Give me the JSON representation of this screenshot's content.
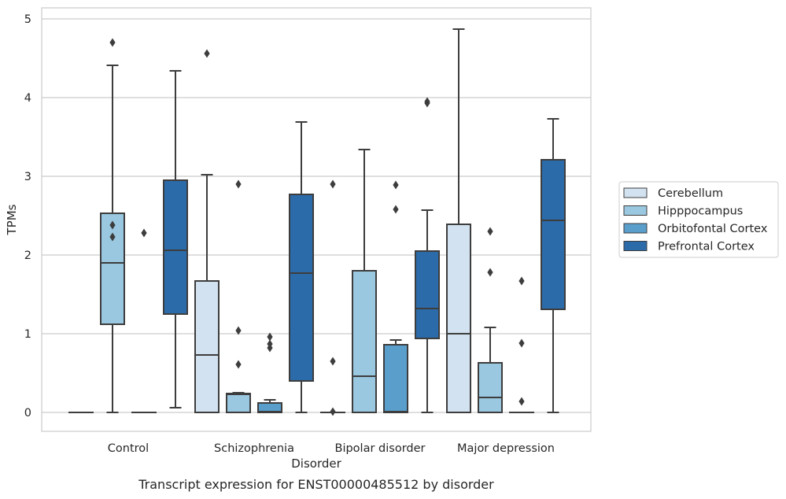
{
  "chart_data": {
    "type": "box",
    "title": "Transcript expression for ENST00000485512 by disorder",
    "xlabel": "Disorder",
    "ylabel": "TPMs",
    "ylim": [
      -0.24,
      5.14
    ],
    "yticks": [
      "0",
      "1",
      "2",
      "3",
      "4",
      "5"
    ],
    "ytick_values": [
      0,
      1,
      2,
      3,
      4,
      5
    ],
    "grid": true,
    "legend_position": "right",
    "categories": [
      "Control",
      "Schizophrenia",
      "Bipolar disorder",
      "Major depression"
    ],
    "series": [
      {
        "name": "Cerebellum",
        "color": "#d2e2f1",
        "boxes": [
          {
            "q1": 0,
            "median": 0,
            "q3": 0,
            "whislo": 0,
            "whishi": 0,
            "fliers": []
          },
          {
            "q1": 0,
            "median": 0.73,
            "q3": 1.67,
            "whislo": 0,
            "whishi": 3.02,
            "fliers": [
              4.56
            ]
          },
          {
            "q1": 0,
            "median": 0,
            "q3": 0,
            "whislo": 0,
            "whishi": 0,
            "fliers": [
              0.01,
              0.65,
              2.9
            ]
          },
          {
            "q1": 0,
            "median": 1.0,
            "q3": 2.39,
            "whislo": 0,
            "whishi": 4.87,
            "fliers": []
          }
        ]
      },
      {
        "name": "Hipppocampus",
        "color": "#9ac8e0",
        "boxes": [
          {
            "q1": 1.12,
            "median": 1.9,
            "q3": 2.53,
            "whislo": 0,
            "whishi": 4.41,
            "fliers": [
              2.23,
              2.38,
              4.7
            ]
          },
          {
            "q1": 0,
            "median": 0.23,
            "q3": 0.24,
            "whislo": 0,
            "whishi": 0.25,
            "fliers": [
              0.61,
              1.04,
              2.9
            ]
          },
          {
            "q1": 0,
            "median": 0.46,
            "q3": 1.8,
            "whislo": 0,
            "whishi": 3.34,
            "fliers": []
          },
          {
            "q1": 0,
            "median": 0.19,
            "q3": 0.63,
            "whislo": 0,
            "whishi": 1.08,
            "fliers": [
              1.78,
              2.3
            ]
          }
        ]
      },
      {
        "name": "Orbitofontal Cortex",
        "color": "#5a9ecc",
        "boxes": [
          {
            "q1": 0,
            "median": 0,
            "q3": 0,
            "whislo": 0,
            "whishi": 0,
            "fliers": [
              2.28
            ]
          },
          {
            "q1": 0,
            "median": 0.01,
            "q3": 0.12,
            "whislo": 0,
            "whishi": 0.16,
            "fliers": [
              0.82,
              0.87,
              0.96
            ]
          },
          {
            "q1": 0,
            "median": 0.01,
            "q3": 0.86,
            "whislo": 0,
            "whishi": 0.92,
            "fliers": [
              2.58,
              2.89
            ]
          },
          {
            "q1": 0,
            "median": 0,
            "q3": 0,
            "whislo": 0,
            "whishi": 0,
            "fliers": [
              0.14,
              0.88,
              1.67
            ]
          }
        ]
      },
      {
        "name": "Prefrontal Cortex",
        "color": "#2c6ba9",
        "boxes": [
          {
            "q1": 1.25,
            "median": 2.06,
            "q3": 2.95,
            "whislo": 0.06,
            "whishi": 4.34,
            "fliers": []
          },
          {
            "q1": 0.4,
            "median": 1.77,
            "q3": 2.77,
            "whislo": 0,
            "whishi": 3.69,
            "fliers": []
          },
          {
            "q1": 0.94,
            "median": 1.32,
            "q3": 2.05,
            "whislo": 0,
            "whishi": 2.57,
            "fliers": [
              3.93,
              3.95
            ]
          },
          {
            "q1": 1.31,
            "median": 2.44,
            "q3": 3.21,
            "whislo": 0,
            "whishi": 3.73,
            "fliers": []
          }
        ]
      }
    ]
  }
}
